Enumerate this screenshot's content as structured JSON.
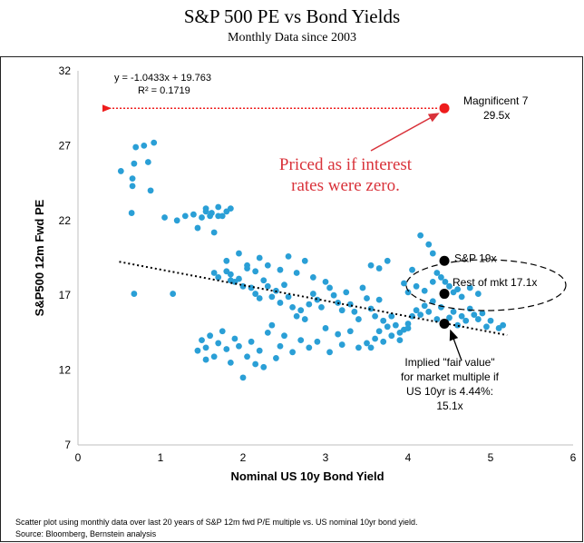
{
  "header": {
    "title": "S&P 500 PE vs Bond Yields",
    "subtitle": "Monthly Data since 2003"
  },
  "footnotes": {
    "line1": "Scatter plot using monthly data over last 20 years of S&P 12m fwd P/E multiple vs. US nominal 10yr bond yield.",
    "line2": "Source: Bloomberg, Bernstein analysis"
  },
  "chart_data": {
    "type": "scatter",
    "xlabel": "Nominal US 10y Bond Yield",
    "ylabel": "S&P500 12m Fwd PE",
    "xlim": [
      0,
      6
    ],
    "ylim": [
      7,
      32
    ],
    "xticks": [
      0,
      1,
      2,
      3,
      4,
      5,
      6
    ],
    "yticks": [
      7,
      12,
      17,
      22,
      27,
      32
    ],
    "grid": false,
    "point_color": "#2a9fd6",
    "regression": {
      "equation": "y = -1.0433x + 19.763",
      "r2": "R² = 0.1719",
      "x_range": [
        0.5,
        5.2
      ]
    },
    "points": [
      [
        0.52,
        25.3
      ],
      [
        0.66,
        24.8
      ],
      [
        0.66,
        24.3
      ],
      [
        0.68,
        25.8
      ],
      [
        0.7,
        26.9
      ],
      [
        0.8,
        27.0
      ],
      [
        0.85,
        25.9
      ],
      [
        0.92,
        27.2
      ],
      [
        0.88,
        24.0
      ],
      [
        0.65,
        22.5
      ],
      [
        0.68,
        17.1
      ],
      [
        1.15,
        17.1
      ],
      [
        1.05,
        22.2
      ],
      [
        1.2,
        22.0
      ],
      [
        1.3,
        22.3
      ],
      [
        1.4,
        22.4
      ],
      [
        1.45,
        21.5
      ],
      [
        1.5,
        22.2
      ],
      [
        1.55,
        22.6
      ],
      [
        1.6,
        22.3
      ],
      [
        1.65,
        21.2
      ],
      [
        1.7,
        22.3
      ],
      [
        1.75,
        22.3
      ],
      [
        1.8,
        22.6
      ],
      [
        1.85,
        22.8
      ],
      [
        1.7,
        22.9
      ],
      [
        1.55,
        22.8
      ],
      [
        1.62,
        22.5
      ],
      [
        1.65,
        18.5
      ],
      [
        1.7,
        18.2
      ],
      [
        1.8,
        18.6
      ],
      [
        1.85,
        18.4
      ],
      [
        1.9,
        17.9
      ],
      [
        1.95,
        18.1
      ],
      [
        2.0,
        17.6
      ],
      [
        2.05,
        18.8
      ],
      [
        2.1,
        17.5
      ],
      [
        2.15,
        17.1
      ],
      [
        2.2,
        16.8
      ],
      [
        2.25,
        18.0
      ],
      [
        2.3,
        17.6
      ],
      [
        2.35,
        16.9
      ],
      [
        2.4,
        17.3
      ],
      [
        2.45,
        16.5
      ],
      [
        2.5,
        17.7
      ],
      [
        2.55,
        16.9
      ],
      [
        2.6,
        16.2
      ],
      [
        2.65,
        15.6
      ],
      [
        2.7,
        16.0
      ],
      [
        2.75,
        15.4
      ],
      [
        2.8,
        16.4
      ],
      [
        2.85,
        17.1
      ],
      [
        2.9,
        16.7
      ],
      [
        2.95,
        16.2
      ],
      [
        3.0,
        17.9
      ],
      [
        3.05,
        17.5
      ],
      [
        3.1,
        17.0
      ],
      [
        3.15,
        16.5
      ],
      [
        3.2,
        16.0
      ],
      [
        3.25,
        17.2
      ],
      [
        3.3,
        16.4
      ],
      [
        3.35,
        15.9
      ],
      [
        3.4,
        15.4
      ],
      [
        3.45,
        17.5
      ],
      [
        3.5,
        16.8
      ],
      [
        3.55,
        16.1
      ],
      [
        3.6,
        15.6
      ],
      [
        3.65,
        16.7
      ],
      [
        3.7,
        15.3
      ],
      [
        3.75,
        14.9
      ],
      [
        3.8,
        15.6
      ],
      [
        3.85,
        15.0
      ],
      [
        3.9,
        14.5
      ],
      [
        3.95,
        14.7
      ],
      [
        4.0,
        15.1
      ],
      [
        4.05,
        15.6
      ],
      [
        4.1,
        16.0
      ],
      [
        4.15,
        15.7
      ],
      [
        4.2,
        16.3
      ],
      [
        4.25,
        15.9
      ],
      [
        4.3,
        16.6
      ],
      [
        4.35,
        15.4
      ],
      [
        4.4,
        16.2
      ],
      [
        4.45,
        15.2
      ],
      [
        4.5,
        15.5
      ],
      [
        4.55,
        15.9
      ],
      [
        4.6,
        15.0
      ],
      [
        4.65,
        15.6
      ],
      [
        4.7,
        15.3
      ],
      [
        4.75,
        16.1
      ],
      [
        4.8,
        15.7
      ],
      [
        4.85,
        15.4
      ],
      [
        4.9,
        15.8
      ],
      [
        5.0,
        15.3
      ],
      [
        5.1,
        14.8
      ],
      [
        5.15,
        15.0
      ],
      [
        4.95,
        14.9
      ],
      [
        1.8,
        19.3
      ],
      [
        1.85,
        18.0
      ],
      [
        1.95,
        19.8
      ],
      [
        2.05,
        19.0
      ],
      [
        2.15,
        18.6
      ],
      [
        2.2,
        19.5
      ],
      [
        2.3,
        19.0
      ],
      [
        2.45,
        18.7
      ],
      [
        2.55,
        19.6
      ],
      [
        2.65,
        18.5
      ],
      [
        2.75,
        19.3
      ],
      [
        2.85,
        18.2
      ],
      [
        3.55,
        19.0
      ],
      [
        3.65,
        18.8
      ],
      [
        3.75,
        19.3
      ],
      [
        3.95,
        17.8
      ],
      [
        4.05,
        18.7
      ],
      [
        4.15,
        21.0
      ],
      [
        4.25,
        20.4
      ],
      [
        4.3,
        19.8
      ],
      [
        4.35,
        18.5
      ],
      [
        4.45,
        17.9
      ],
      [
        4.55,
        17.2
      ],
      [
        4.65,
        16.9
      ],
      [
        4.75,
        17.5
      ],
      [
        4.1,
        17.6
      ],
      [
        4.2,
        17.3
      ],
      [
        4.3,
        17.9
      ],
      [
        4.4,
        18.2
      ],
      [
        4.5,
        17.6
      ],
      [
        4.6,
        17.4
      ],
      [
        4.0,
        17.2
      ],
      [
        4.85,
        17.1
      ],
      [
        1.5,
        14.0
      ],
      [
        1.55,
        13.5
      ],
      [
        1.6,
        14.3
      ],
      [
        1.65,
        12.9
      ],
      [
        1.7,
        13.8
      ],
      [
        1.75,
        14.6
      ],
      [
        1.8,
        13.4
      ],
      [
        1.85,
        12.5
      ],
      [
        1.9,
        14.1
      ],
      [
        1.95,
        13.6
      ],
      [
        2.0,
        11.5
      ],
      [
        2.05,
        12.9
      ],
      [
        2.1,
        13.9
      ],
      [
        2.15,
        12.4
      ],
      [
        2.2,
        13.3
      ],
      [
        2.25,
        12.2
      ],
      [
        2.3,
        14.5
      ],
      [
        2.35,
        15.0
      ],
      [
        2.4,
        12.8
      ],
      [
        2.45,
        13.6
      ],
      [
        1.45,
        13.3
      ],
      [
        1.55,
        12.7
      ],
      [
        2.5,
        14.3
      ],
      [
        2.6,
        13.2
      ],
      [
        2.7,
        14.0
      ],
      [
        2.8,
        13.5
      ],
      [
        2.9,
        13.9
      ],
      [
        3.0,
        14.8
      ],
      [
        3.05,
        13.2
      ],
      [
        3.15,
        14.4
      ],
      [
        3.2,
        13.7
      ],
      [
        3.3,
        14.6
      ],
      [
        3.4,
        13.5
      ],
      [
        3.5,
        13.8
      ],
      [
        3.6,
        14.1
      ],
      [
        3.7,
        13.9
      ],
      [
        3.8,
        14.3
      ],
      [
        3.9,
        14.0
      ],
      [
        4.0,
        14.8
      ],
      [
        3.55,
        13.5
      ],
      [
        3.65,
        14.6
      ]
    ],
    "highlight_points": [
      {
        "label": "S&P 19x",
        "x": 4.44,
        "y": 19.3
      },
      {
        "label": "Rest of mkt 17.1x",
        "x": 4.44,
        "y": 17.1
      },
      {
        "label": "fair value",
        "x": 4.44,
        "y": 15.1
      }
    ],
    "magnificent": {
      "label1": "Magnificent 7",
      "label2": "29.5x",
      "x": 4.44,
      "y": 29.5,
      "color": "#ee1c1c"
    },
    "annotations": {
      "priced_line1": "Priced as if interest",
      "priced_line2": "rates were zero.",
      "priced_color": "#d9323a",
      "fair_line1": "Implied \"fair value\"",
      "fair_line2": "for market multiple if",
      "fair_line3": "US 10yr is 4.44%:",
      "fair_line4": "15.1x"
    }
  }
}
